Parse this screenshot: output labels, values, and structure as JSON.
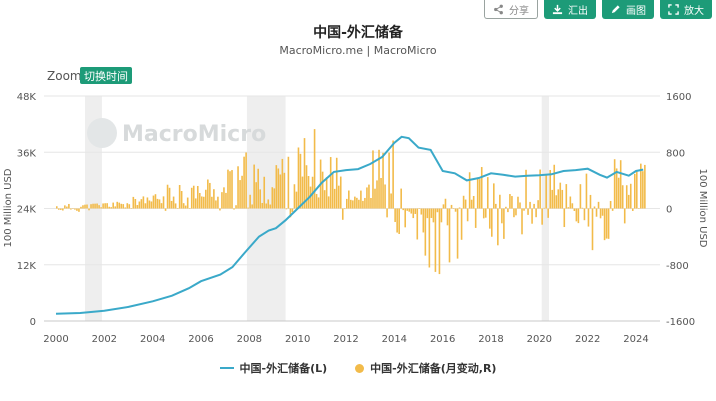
{
  "toolbar": {
    "share_label": "分享",
    "export_label": "汇出",
    "draw_label": "画图",
    "expand_label": "放大"
  },
  "title": "中国-外汇储备",
  "subtitle": "MacroMicro.me | MacroMicro",
  "zoom": {
    "label": "Zoom",
    "button": "切换时间"
  },
  "watermark": "MacroMicro",
  "colors": {
    "line": "#3aa9c9",
    "bars": "#f2bb4a",
    "accent": "#1d9b78",
    "shade": "#eeeeee"
  },
  "chart_data": {
    "type": "line+bar",
    "x_range": [
      2000,
      2024.5
    ],
    "x_ticks": [
      "2000",
      "2002",
      "2004",
      "2006",
      "2008",
      "2010",
      "2012",
      "2014",
      "2016",
      "2018",
      "2020",
      "2022",
      "2024"
    ],
    "left_axis": {
      "label": "100 Million USD",
      "range": [
        0,
        48000
      ],
      "ticks": [
        "0",
        "12K",
        "24K",
        "36K",
        "48K"
      ]
    },
    "right_axis": {
      "label": "100 Million USD",
      "range": [
        -1600,
        1600
      ],
      "ticks": [
        "-1600",
        "-800",
        "0",
        "800",
        "1600"
      ]
    },
    "shaded_periods": [
      [
        2001.2,
        2001.9
      ],
      [
        2007.9,
        2009.5
      ],
      [
        2020.1,
        2020.4
      ]
    ],
    "series": [
      {
        "name": "中国-外汇储备(L)",
        "type": "line",
        "axis": "left",
        "points": [
          [
            2000.0,
            1550
          ],
          [
            2001.0,
            1700
          ],
          [
            2002.0,
            2200
          ],
          [
            2003.0,
            3000
          ],
          [
            2004.0,
            4200
          ],
          [
            2004.8,
            5400
          ],
          [
            2005.5,
            7000
          ],
          [
            2006.0,
            8500
          ],
          [
            2006.8,
            9900
          ],
          [
            2007.3,
            11500
          ],
          [
            2007.8,
            14500
          ],
          [
            2008.4,
            18000
          ],
          [
            2008.8,
            19300
          ],
          [
            2009.1,
            19800
          ],
          [
            2009.5,
            21500
          ],
          [
            2010.0,
            24000
          ],
          [
            2010.5,
            26500
          ],
          [
            2011.0,
            29500
          ],
          [
            2011.5,
            31800
          ],
          [
            2012.0,
            32200
          ],
          [
            2012.5,
            32400
          ],
          [
            2013.0,
            33500
          ],
          [
            2013.5,
            35000
          ],
          [
            2014.0,
            38000
          ],
          [
            2014.3,
            39300
          ],
          [
            2014.6,
            39000
          ],
          [
            2015.0,
            37000
          ],
          [
            2015.5,
            36500
          ],
          [
            2016.0,
            32000
          ],
          [
            2016.5,
            31500
          ],
          [
            2017.0,
            30000
          ],
          [
            2017.5,
            30500
          ],
          [
            2018.0,
            31500
          ],
          [
            2018.5,
            31200
          ],
          [
            2019.0,
            30800
          ],
          [
            2019.5,
            31000
          ],
          [
            2020.0,
            31100
          ],
          [
            2020.5,
            31300
          ],
          [
            2021.0,
            32000
          ],
          [
            2021.5,
            32200
          ],
          [
            2022.0,
            32500
          ],
          [
            2022.5,
            31200
          ],
          [
            2022.8,
            30600
          ],
          [
            2023.2,
            31800
          ],
          [
            2023.7,
            31000
          ],
          [
            2024.0,
            32000
          ],
          [
            2024.3,
            32300
          ]
        ]
      },
      {
        "name": "中国-外汇储备(月变动,R)",
        "type": "bar",
        "axis": "right",
        "periods": [
          [
            2000.0,
            2001.0,
            10
          ],
          [
            2001.0,
            2002.0,
            30
          ],
          [
            2002.0,
            2003.0,
            60
          ],
          [
            2003.0,
            2004.0,
            90
          ],
          [
            2004.0,
            2005.0,
            150
          ],
          [
            2005.0,
            2006.0,
            200
          ],
          [
            2006.0,
            2007.0,
            230
          ],
          [
            2007.0,
            2008.0,
            380
          ],
          [
            2008.0,
            2009.0,
            300
          ],
          [
            2009.0,
            2010.0,
            420
          ],
          [
            2010.0,
            2011.0,
            480
          ],
          [
            2011.0,
            2012.0,
            450
          ],
          [
            2012.0,
            2013.0,
            200
          ],
          [
            2013.0,
            2014.0,
            500
          ],
          [
            2014.0,
            2015.0,
            -150
          ],
          [
            2015.0,
            2016.0,
            -450
          ],
          [
            2016.0,
            2017.0,
            -300
          ],
          [
            2017.0,
            2018.0,
            150
          ],
          [
            2018.0,
            2019.0,
            -120
          ],
          [
            2019.0,
            2020.0,
            60
          ],
          [
            2020.0,
            2021.0,
            180
          ],
          [
            2021.0,
            2022.0,
            90
          ],
          [
            2022.0,
            2023.0,
            -250
          ],
          [
            2023.0,
            2024.0,
            220
          ],
          [
            2024.0,
            2024.4,
            300
          ]
        ]
      }
    ]
  },
  "legend": [
    "中国-外汇储备(L)",
    "中国-外汇储备(月变动,R)"
  ]
}
